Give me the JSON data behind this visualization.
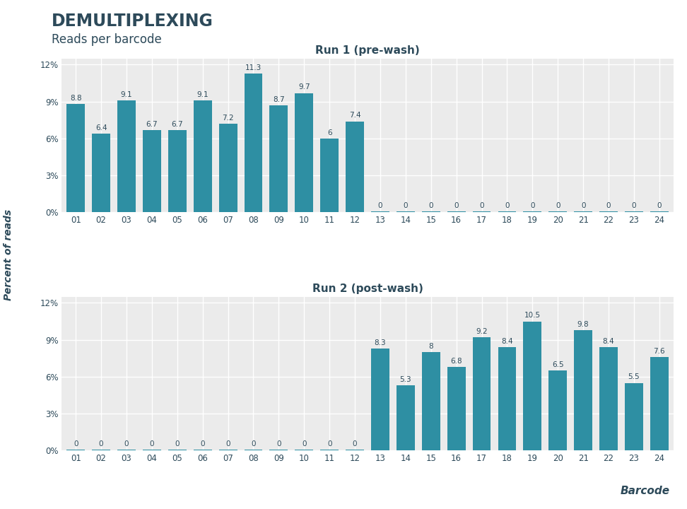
{
  "title": "DEMULTIPLEXING",
  "subtitle": "Reads per barcode",
  "xlabel": "Barcode",
  "ylabel": "Percent of reads",
  "bar_color": "#2e8fa3",
  "figure_bg": "#ffffff",
  "plot_bg_color": "#ebebeb",
  "grid_color": "#ffffff",
  "text_color": "#2d4a5a",
  "categories": [
    "01",
    "02",
    "03",
    "04",
    "05",
    "06",
    "07",
    "08",
    "09",
    "10",
    "11",
    "12",
    "13",
    "14",
    "15",
    "16",
    "17",
    "18",
    "19",
    "20",
    "21",
    "22",
    "23",
    "24"
  ],
  "run1_values": [
    8.8,
    6.4,
    9.1,
    6.7,
    6.7,
    9.1,
    7.2,
    11.3,
    8.7,
    9.7,
    6,
    7.4,
    0,
    0,
    0,
    0,
    0,
    0,
    0,
    0,
    0,
    0,
    0,
    0
  ],
  "run1_labels": [
    "8.8",
    "6.4",
    "9.1",
    "6.7",
    "6.7",
    "9.1",
    "7.2",
    "11.3",
    "8.7",
    "9.7",
    "6",
    "7.4",
    "0",
    "0",
    "0",
    "0",
    "0",
    "0",
    "0",
    "0",
    "0",
    "0",
    "0",
    "0"
  ],
  "run2_values": [
    0,
    0,
    0,
    0,
    0,
    0,
    0,
    0,
    0,
    0,
    0,
    0,
    8.3,
    5.3,
    8,
    6.8,
    9.2,
    8.4,
    10.5,
    6.5,
    9.8,
    8.4,
    5.5,
    7.6
  ],
  "run2_labels": [
    "0",
    "0",
    "0",
    "0",
    "0",
    "0",
    "0",
    "0",
    "0",
    "0",
    "0",
    "0",
    "8.3",
    "5.3",
    "8",
    "6.8",
    "9.2",
    "8.4",
    "10.5",
    "6.5",
    "9.8",
    "8.4",
    "5.5",
    "7.6"
  ],
  "run1_title": "Run 1 (pre-wash)",
  "run2_title": "Run 2 (post-wash)",
  "ylim": [
    0,
    12.5
  ],
  "yticks": [
    0,
    3,
    6,
    9,
    12
  ],
  "ytick_labels": [
    "0%",
    "3%",
    "6%",
    "9%",
    "12%"
  ]
}
